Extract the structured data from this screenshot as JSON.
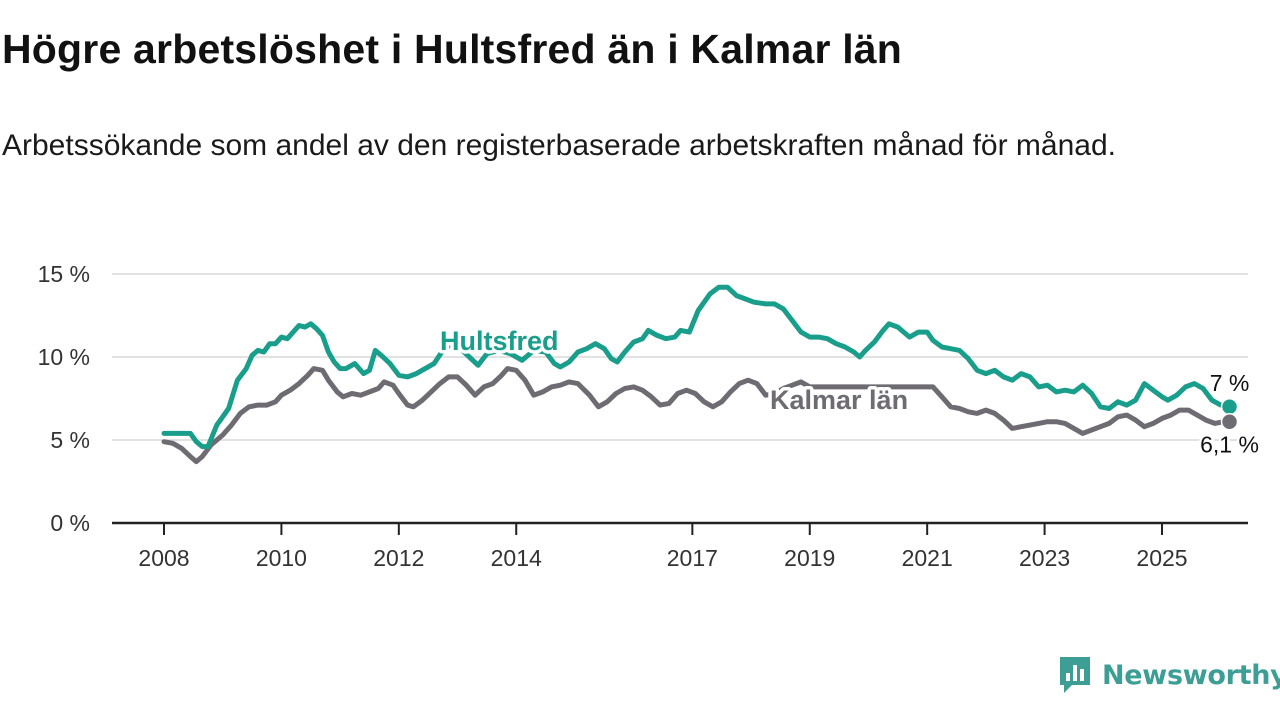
{
  "header": {
    "title": "Högre arbetslöshet i Hultsfred än i Kalmar län",
    "subtitle": "Arbetssökande som andel av den registerbaserade arbetskraften månad för månad."
  },
  "brand": {
    "name": "Newsworthy",
    "icon": "newsworthy-logo-icon",
    "color": "#3c9e94"
  },
  "chart_data": {
    "type": "line",
    "title": "Högre arbetslöshet i Hultsfred än i Kalmar län",
    "subtitle": "Arbetssökande som andel av den registerbaserade arbetskraften månad för månad.",
    "xlabel": "",
    "ylabel": "",
    "xlim": [
      2008,
      2026.5
    ],
    "ylim": [
      0,
      15
    ],
    "y_ticks": [
      {
        "value": 0,
        "label": "0 %"
      },
      {
        "value": 5,
        "label": "5 %"
      },
      {
        "value": 10,
        "label": "10 %"
      },
      {
        "value": 15,
        "label": "15 %"
      }
    ],
    "x_ticks": [
      {
        "value": 2008,
        "label": "2008"
      },
      {
        "value": 2010,
        "label": "2010"
      },
      {
        "value": 2012,
        "label": "2012"
      },
      {
        "value": 2014,
        "label": "2014"
      },
      {
        "value": 2017,
        "label": "2017"
      },
      {
        "value": 2019,
        "label": "2019"
      },
      {
        "value": 2021,
        "label": "2021"
      },
      {
        "value": 2023,
        "label": "2023"
      },
      {
        "value": 2025,
        "label": "2025"
      }
    ],
    "grid": true,
    "legend": "inline labels",
    "series": [
      {
        "name": "Hultsfred",
        "color": "#1a9e8c",
        "end_label": "7 %",
        "points": [
          [
            2008.0,
            5.4
          ],
          [
            2008.3,
            5.4
          ],
          [
            2008.45,
            5.4
          ],
          [
            2008.55,
            4.9
          ],
          [
            2008.65,
            4.6
          ],
          [
            2008.75,
            4.6
          ],
          [
            2008.9,
            5.9
          ],
          [
            2009.1,
            6.9
          ],
          [
            2009.25,
            8.6
          ],
          [
            2009.4,
            9.3
          ],
          [
            2009.5,
            10.1
          ],
          [
            2009.6,
            10.4
          ],
          [
            2009.7,
            10.3
          ],
          [
            2009.8,
            10.8
          ],
          [
            2009.9,
            10.8
          ],
          [
            2010.0,
            11.2
          ],
          [
            2010.1,
            11.1
          ],
          [
            2010.2,
            11.5
          ],
          [
            2010.3,
            11.9
          ],
          [
            2010.4,
            11.8
          ],
          [
            2010.5,
            12.0
          ],
          [
            2010.6,
            11.7
          ],
          [
            2010.7,
            11.3
          ],
          [
            2010.8,
            10.3
          ],
          [
            2010.9,
            9.7
          ],
          [
            2011.0,
            9.3
          ],
          [
            2011.1,
            9.3
          ],
          [
            2011.25,
            9.6
          ],
          [
            2011.4,
            9.0
          ],
          [
            2011.5,
            9.2
          ],
          [
            2011.6,
            10.4
          ],
          [
            2011.7,
            10.1
          ],
          [
            2011.85,
            9.6
          ],
          [
            2012.0,
            8.9
          ],
          [
            2012.15,
            8.8
          ],
          [
            2012.3,
            9.0
          ],
          [
            2012.45,
            9.3
          ],
          [
            2012.6,
            9.6
          ],
          [
            2012.75,
            10.4
          ],
          [
            2012.9,
            10.8
          ],
          [
            2013.05,
            10.5
          ],
          [
            2013.2,
            10.0
          ],
          [
            2013.35,
            9.5
          ],
          [
            2013.5,
            10.2
          ],
          [
            2013.7,
            10.4
          ],
          [
            2013.9,
            10.2
          ],
          [
            2014.1,
            9.8
          ],
          [
            2014.3,
            10.4
          ],
          [
            2014.5,
            10.3
          ],
          [
            2014.65,
            9.6
          ],
          [
            2014.75,
            9.4
          ],
          [
            2014.9,
            9.7
          ],
          [
            2015.05,
            10.3
          ],
          [
            2015.2,
            10.5
          ],
          [
            2015.35,
            10.8
          ],
          [
            2015.5,
            10.5
          ],
          [
            2015.62,
            9.9
          ],
          [
            2015.72,
            9.7
          ],
          [
            2015.85,
            10.3
          ],
          [
            2016.0,
            10.9
          ],
          [
            2016.15,
            11.1
          ],
          [
            2016.25,
            11.6
          ],
          [
            2016.4,
            11.3
          ],
          [
            2016.55,
            11.1
          ],
          [
            2016.7,
            11.2
          ],
          [
            2016.8,
            11.6
          ],
          [
            2016.95,
            11.5
          ],
          [
            2017.1,
            12.8
          ],
          [
            2017.3,
            13.8
          ],
          [
            2017.45,
            14.2
          ],
          [
            2017.6,
            14.2
          ],
          [
            2017.75,
            13.7
          ],
          [
            2017.9,
            13.5
          ],
          [
            2018.05,
            13.3
          ],
          [
            2018.25,
            13.2
          ],
          [
            2018.4,
            13.2
          ],
          [
            2018.55,
            12.9
          ],
          [
            2018.7,
            12.2
          ],
          [
            2018.85,
            11.5
          ],
          [
            2019.0,
            11.2
          ],
          [
            2019.15,
            11.2
          ],
          [
            2019.3,
            11.1
          ],
          [
            2019.45,
            10.8
          ],
          [
            2019.6,
            10.6
          ],
          [
            2019.75,
            10.3
          ],
          [
            2019.85,
            10.0
          ],
          [
            2019.95,
            10.4
          ],
          [
            2020.1,
            10.9
          ],
          [
            2020.25,
            11.6
          ],
          [
            2020.35,
            12.0
          ],
          [
            2020.5,
            11.8
          ],
          [
            2020.6,
            11.5
          ],
          [
            2020.7,
            11.2
          ],
          [
            2020.85,
            11.5
          ],
          [
            2021.0,
            11.5
          ],
          [
            2021.1,
            11.0
          ],
          [
            2021.25,
            10.6
          ],
          [
            2021.4,
            10.5
          ],
          [
            2021.55,
            10.4
          ],
          [
            2021.7,
            9.9
          ],
          [
            2021.85,
            9.2
          ],
          [
            2022.0,
            9.0
          ],
          [
            2022.15,
            9.2
          ],
          [
            2022.3,
            8.8
          ],
          [
            2022.45,
            8.6
          ],
          [
            2022.6,
            9.0
          ],
          [
            2022.75,
            8.8
          ],
          [
            2022.9,
            8.2
          ],
          [
            2023.05,
            8.3
          ],
          [
            2023.2,
            7.9
          ],
          [
            2023.35,
            8.0
          ],
          [
            2023.5,
            7.9
          ],
          [
            2023.65,
            8.3
          ],
          [
            2023.8,
            7.8
          ],
          [
            2023.95,
            7.0
          ],
          [
            2024.1,
            6.9
          ],
          [
            2024.25,
            7.3
          ],
          [
            2024.4,
            7.1
          ],
          [
            2024.55,
            7.4
          ],
          [
            2024.7,
            8.4
          ],
          [
            2024.85,
            8.0
          ],
          [
            2025.0,
            7.6
          ],
          [
            2025.1,
            7.4
          ],
          [
            2025.25,
            7.7
          ],
          [
            2025.4,
            8.2
          ],
          [
            2025.55,
            8.4
          ],
          [
            2025.7,
            8.1
          ],
          [
            2025.85,
            7.4
          ],
          [
            2026.0,
            7.1
          ],
          [
            2026.15,
            7.0
          ]
        ]
      },
      {
        "name": "Kalmar län",
        "color": "#6f6b72",
        "end_label": "6,1 %",
        "points": [
          [
            2008.0,
            4.9
          ],
          [
            2008.15,
            4.8
          ],
          [
            2008.3,
            4.5
          ],
          [
            2008.45,
            4.0
          ],
          [
            2008.55,
            3.7
          ],
          [
            2008.65,
            4.0
          ],
          [
            2008.8,
            4.7
          ],
          [
            2009.0,
            5.3
          ],
          [
            2009.15,
            5.9
          ],
          [
            2009.3,
            6.6
          ],
          [
            2009.45,
            7.0
          ],
          [
            2009.6,
            7.1
          ],
          [
            2009.75,
            7.1
          ],
          [
            2009.9,
            7.3
          ],
          [
            2010.0,
            7.7
          ],
          [
            2010.15,
            8.0
          ],
          [
            2010.3,
            8.4
          ],
          [
            2010.45,
            8.9
          ],
          [
            2010.55,
            9.3
          ],
          [
            2010.7,
            9.2
          ],
          [
            2010.8,
            8.6
          ],
          [
            2010.95,
            7.9
          ],
          [
            2011.05,
            7.6
          ],
          [
            2011.2,
            7.8
          ],
          [
            2011.35,
            7.7
          ],
          [
            2011.5,
            7.9
          ],
          [
            2011.65,
            8.1
          ],
          [
            2011.75,
            8.5
          ],
          [
            2011.9,
            8.3
          ],
          [
            2012.0,
            7.8
          ],
          [
            2012.15,
            7.1
          ],
          [
            2012.25,
            7.0
          ],
          [
            2012.4,
            7.4
          ],
          [
            2012.55,
            7.9
          ],
          [
            2012.7,
            8.4
          ],
          [
            2012.85,
            8.8
          ],
          [
            2013.0,
            8.8
          ],
          [
            2013.15,
            8.3
          ],
          [
            2013.3,
            7.7
          ],
          [
            2013.45,
            8.2
          ],
          [
            2013.6,
            8.4
          ],
          [
            2013.75,
            8.9
          ],
          [
            2013.85,
            9.3
          ],
          [
            2014.0,
            9.2
          ],
          [
            2014.15,
            8.6
          ],
          [
            2014.3,
            7.7
          ],
          [
            2014.45,
            7.9
          ],
          [
            2014.6,
            8.2
          ],
          [
            2014.75,
            8.3
          ],
          [
            2014.9,
            8.5
          ],
          [
            2015.05,
            8.4
          ],
          [
            2015.25,
            7.7
          ],
          [
            2015.4,
            7.0
          ],
          [
            2015.55,
            7.3
          ],
          [
            2015.7,
            7.8
          ],
          [
            2015.85,
            8.1
          ],
          [
            2016.0,
            8.2
          ],
          [
            2016.15,
            8.0
          ],
          [
            2016.3,
            7.6
          ],
          [
            2016.45,
            7.1
          ],
          [
            2016.6,
            7.2
          ],
          [
            2016.75,
            7.8
          ],
          [
            2016.9,
            8.0
          ],
          [
            2017.05,
            7.8
          ],
          [
            2017.2,
            7.3
          ],
          [
            2017.35,
            7.0
          ],
          [
            2017.5,
            7.3
          ],
          [
            2017.65,
            7.9
          ],
          [
            2017.8,
            8.4
          ],
          [
            2017.95,
            8.6
          ],
          [
            2018.1,
            8.4
          ],
          [
            2018.25,
            7.7
          ],
          [
            2018.4,
            7.8
          ],
          [
            2018.55,
            8.1
          ],
          [
            2018.7,
            8.3
          ],
          [
            2018.85,
            8.5
          ],
          [
            2019.0,
            8.2
          ],
          [
            2021.1,
            8.2
          ],
          [
            2021.25,
            7.6
          ],
          [
            2021.4,
            7.0
          ],
          [
            2021.55,
            6.9
          ],
          [
            2021.7,
            6.7
          ],
          [
            2021.85,
            6.6
          ],
          [
            2022.0,
            6.8
          ],
          [
            2022.15,
            6.6
          ],
          [
            2022.3,
            6.2
          ],
          [
            2022.45,
            5.7
          ],
          [
            2022.6,
            5.8
          ],
          [
            2022.75,
            5.9
          ],
          [
            2022.9,
            6.0
          ],
          [
            2023.05,
            6.1
          ],
          [
            2023.2,
            6.1
          ],
          [
            2023.35,
            6.0
          ],
          [
            2023.5,
            5.7
          ],
          [
            2023.65,
            5.4
          ],
          [
            2023.8,
            5.6
          ],
          [
            2023.95,
            5.8
          ],
          [
            2024.1,
            6.0
          ],
          [
            2024.25,
            6.4
          ],
          [
            2024.4,
            6.5
          ],
          [
            2024.55,
            6.2
          ],
          [
            2024.7,
            5.8
          ],
          [
            2024.85,
            6.0
          ],
          [
            2025.0,
            6.3
          ],
          [
            2025.15,
            6.5
          ],
          [
            2025.3,
            6.8
          ],
          [
            2025.45,
            6.8
          ],
          [
            2025.6,
            6.5
          ],
          [
            2025.75,
            6.2
          ],
          [
            2025.9,
            6.0
          ],
          [
            2026.05,
            6.1
          ],
          [
            2026.15,
            6.1
          ]
        ]
      }
    ]
  }
}
